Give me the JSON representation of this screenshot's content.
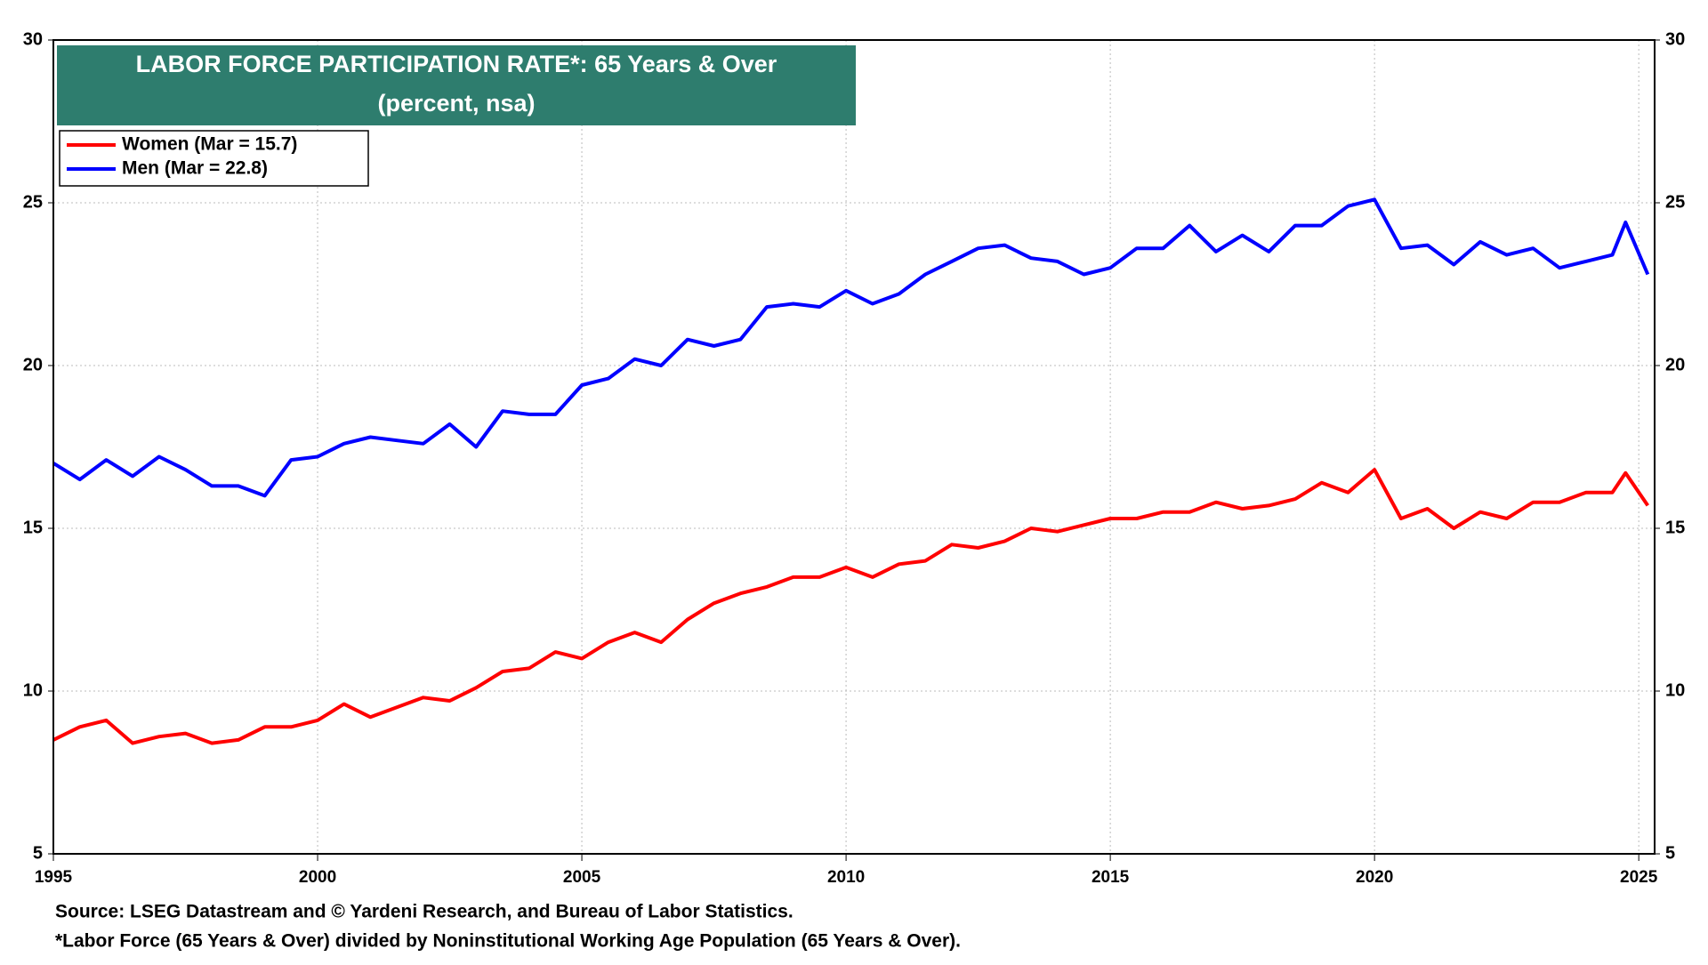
{
  "chart_data": {
    "type": "line",
    "title": "LABOR FORCE PARTICIPATION RATE*: 65 Years & Over",
    "subtitle": "(percent, nsa)",
    "x": [
      1995.0,
      1995.5,
      1996.0,
      1996.5,
      1997.0,
      1997.5,
      1998.0,
      1998.5,
      1999.0,
      1999.5,
      2000.0,
      2000.5,
      2001.0,
      2001.5,
      2002.0,
      2002.5,
      2003.0,
      2003.5,
      2004.0,
      2004.5,
      2005.0,
      2005.5,
      2006.0,
      2006.5,
      2007.0,
      2007.5,
      2008.0,
      2008.5,
      2009.0,
      2009.5,
      2010.0,
      2010.5,
      2011.0,
      2011.5,
      2012.0,
      2012.5,
      2013.0,
      2013.5,
      2014.0,
      2014.5,
      2015.0,
      2015.5,
      2016.0,
      2016.5,
      2017.0,
      2017.5,
      2018.0,
      2018.5,
      2019.0,
      2019.5,
      2020.0,
      2020.5,
      2021.0,
      2021.5,
      2022.0,
      2022.5,
      2023.0,
      2023.5,
      2024.0,
      2024.5,
      2024.75,
      2025.17
    ],
    "series": [
      {
        "name": "Women (Mar  = 15.7)",
        "color": "#ff0000",
        "values": [
          8.5,
          8.9,
          9.1,
          8.4,
          8.6,
          8.7,
          8.4,
          8.5,
          8.9,
          8.9,
          9.1,
          9.6,
          9.2,
          9.5,
          9.8,
          9.7,
          10.1,
          10.6,
          10.7,
          11.2,
          11.0,
          11.5,
          11.8,
          11.5,
          12.2,
          12.7,
          13.0,
          13.2,
          13.5,
          13.5,
          13.8,
          13.5,
          13.9,
          14.0,
          14.5,
          14.4,
          14.6,
          15.0,
          14.9,
          15.1,
          15.3,
          15.3,
          15.5,
          15.5,
          15.8,
          15.6,
          15.7,
          15.9,
          16.4,
          16.1,
          16.8,
          15.3,
          15.6,
          15.0,
          15.5,
          15.3,
          15.8,
          15.8,
          16.1,
          16.1,
          16.7,
          15.7
        ]
      },
      {
        "name": "Men (Mar  = 22.8)",
        "color": "#0000ff",
        "values": [
          17.0,
          16.5,
          17.1,
          16.6,
          17.2,
          16.8,
          16.3,
          16.3,
          16.0,
          17.1,
          17.2,
          17.6,
          17.8,
          17.7,
          17.6,
          18.2,
          17.5,
          18.6,
          18.5,
          18.5,
          19.4,
          19.6,
          20.2,
          20.0,
          20.8,
          20.6,
          20.8,
          21.8,
          21.9,
          21.8,
          22.3,
          21.9,
          22.2,
          22.8,
          23.2,
          23.6,
          23.7,
          23.3,
          23.2,
          22.8,
          23.0,
          23.6,
          23.6,
          24.3,
          23.5,
          24.0,
          23.5,
          24.3,
          24.3,
          24.9,
          25.1,
          23.6,
          23.7,
          23.1,
          23.8,
          23.4,
          23.6,
          23.0,
          23.2,
          23.4,
          24.4,
          22.8
        ]
      }
    ],
    "xlim": [
      1995,
      2025.3
    ],
    "xticks": [
      1995,
      2000,
      2005,
      2010,
      2015,
      2020,
      2025
    ],
    "ylim": [
      5,
      30
    ],
    "yticks": [
      5,
      10,
      15,
      20,
      25,
      30
    ],
    "grid": true,
    "notes": [
      "Source: LSEG Datastream and © Yardeni Research, and Bureau of Labor Statistics.",
      "*Labor Force (65 Years & Over) divided by Noninstitutional Working Age Population (65 Years & Over)."
    ]
  }
}
